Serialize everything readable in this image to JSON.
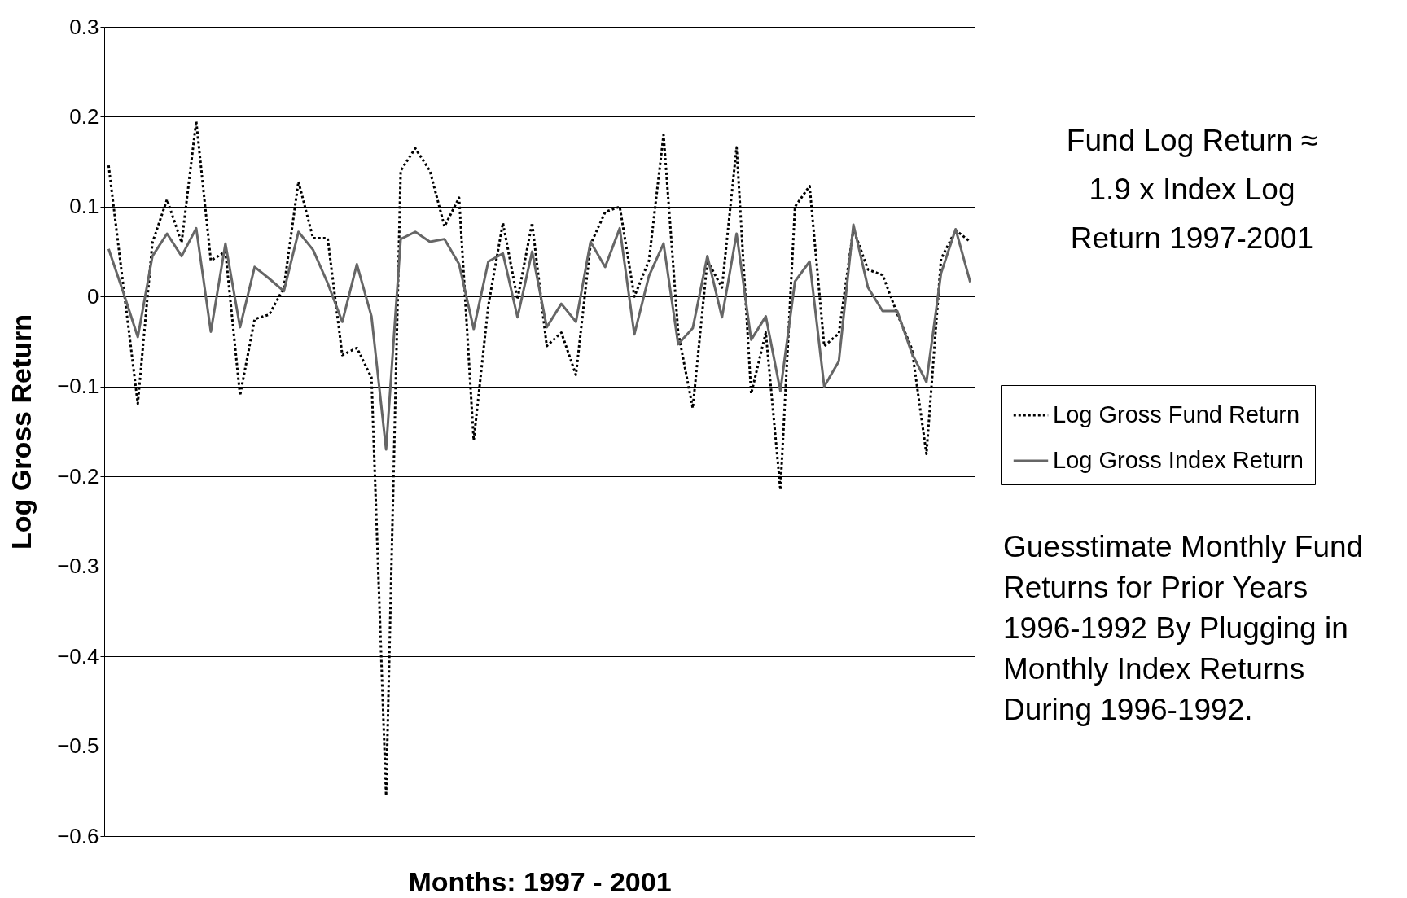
{
  "chart_data": {
    "type": "line",
    "xlabel": "Months: 1997 - 2001",
    "ylabel": "Log Gross Return",
    "categories": [
      null,
      null,
      null,
      null,
      null,
      null,
      null,
      null,
      null,
      null,
      null,
      null,
      null,
      null,
      null,
      null,
      null,
      null,
      null,
      null,
      null,
      null,
      null,
      null,
      null,
      null,
      null,
      null,
      null,
      null,
      null,
      null,
      null,
      null,
      null,
      null,
      null,
      null,
      null,
      null,
      null,
      null,
      null,
      null,
      null,
      null,
      null,
      null,
      null,
      null,
      null,
      null,
      null,
      null,
      null,
      null,
      null,
      null,
      null,
      null
    ],
    "series": [
      {
        "name": "Log Gross Fund Return",
        "color": "#000000",
        "line_style": "dotted",
        "values": [
          0.146,
          0.013,
          -0.119,
          0.06,
          0.108,
          0.06,
          0.195,
          0.04,
          0.05,
          -0.11,
          -0.025,
          -0.02,
          0.01,
          0.128,
          0.065,
          0.065,
          -0.065,
          -0.057,
          -0.09,
          -0.555,
          0.14,
          0.165,
          0.14,
          0.078,
          0.11,
          -0.16,
          -0.01,
          0.082,
          -0.003,
          0.082,
          -0.055,
          -0.04,
          -0.087,
          0.058,
          0.094,
          0.1,
          0.0,
          0.04,
          0.18,
          -0.04,
          -0.124,
          0.04,
          0.01,
          0.166,
          -0.108,
          -0.04,
          -0.215,
          0.1,
          0.123,
          -0.055,
          -0.041,
          0.075,
          0.03,
          0.024,
          -0.019,
          -0.058,
          -0.175,
          0.042,
          0.074,
          0.061
        ]
      },
      {
        "name": "Log Gross Index Return",
        "color": "#666666",
        "line_style": "solid",
        "values": [
          0.053,
          0.005,
          -0.045,
          0.045,
          0.07,
          0.045,
          0.076,
          -0.039,
          0.059,
          -0.034,
          0.033,
          0.02,
          0.006,
          0.072,
          0.052,
          0.015,
          -0.028,
          0.036,
          -0.022,
          -0.17,
          0.064,
          0.072,
          0.061,
          0.064,
          0.036,
          -0.036,
          0.039,
          0.048,
          -0.023,
          0.05,
          -0.034,
          -0.008,
          -0.028,
          0.061,
          0.033,
          0.076,
          -0.042,
          0.023,
          0.059,
          -0.053,
          -0.035,
          0.045,
          -0.023,
          0.07,
          -0.048,
          -0.022,
          -0.105,
          0.017,
          0.039,
          -0.1,
          -0.072,
          0.08,
          0.01,
          -0.016,
          -0.016,
          -0.063,
          -0.095,
          0.026,
          0.075,
          0.016
        ]
      }
    ],
    "ylim": [
      -0.6,
      0.3
    ],
    "yticks": [
      -0.6,
      -0.5,
      -0.4,
      -0.3,
      -0.2,
      -0.1,
      0,
      0.1,
      0.2,
      0.3
    ],
    "grid": "y",
    "legend": "right",
    "tick_labels": "y",
    "marker": "none",
    "annotations": [
      "Fund Log Return ≈ 1.9 x Index Log Return 1997-2001",
      "Guesstimate Monthly Fund Returns for Prior Years 1996-1992 By Plugging in Monthly Index Returns During 1996-1992."
    ]
  }
}
